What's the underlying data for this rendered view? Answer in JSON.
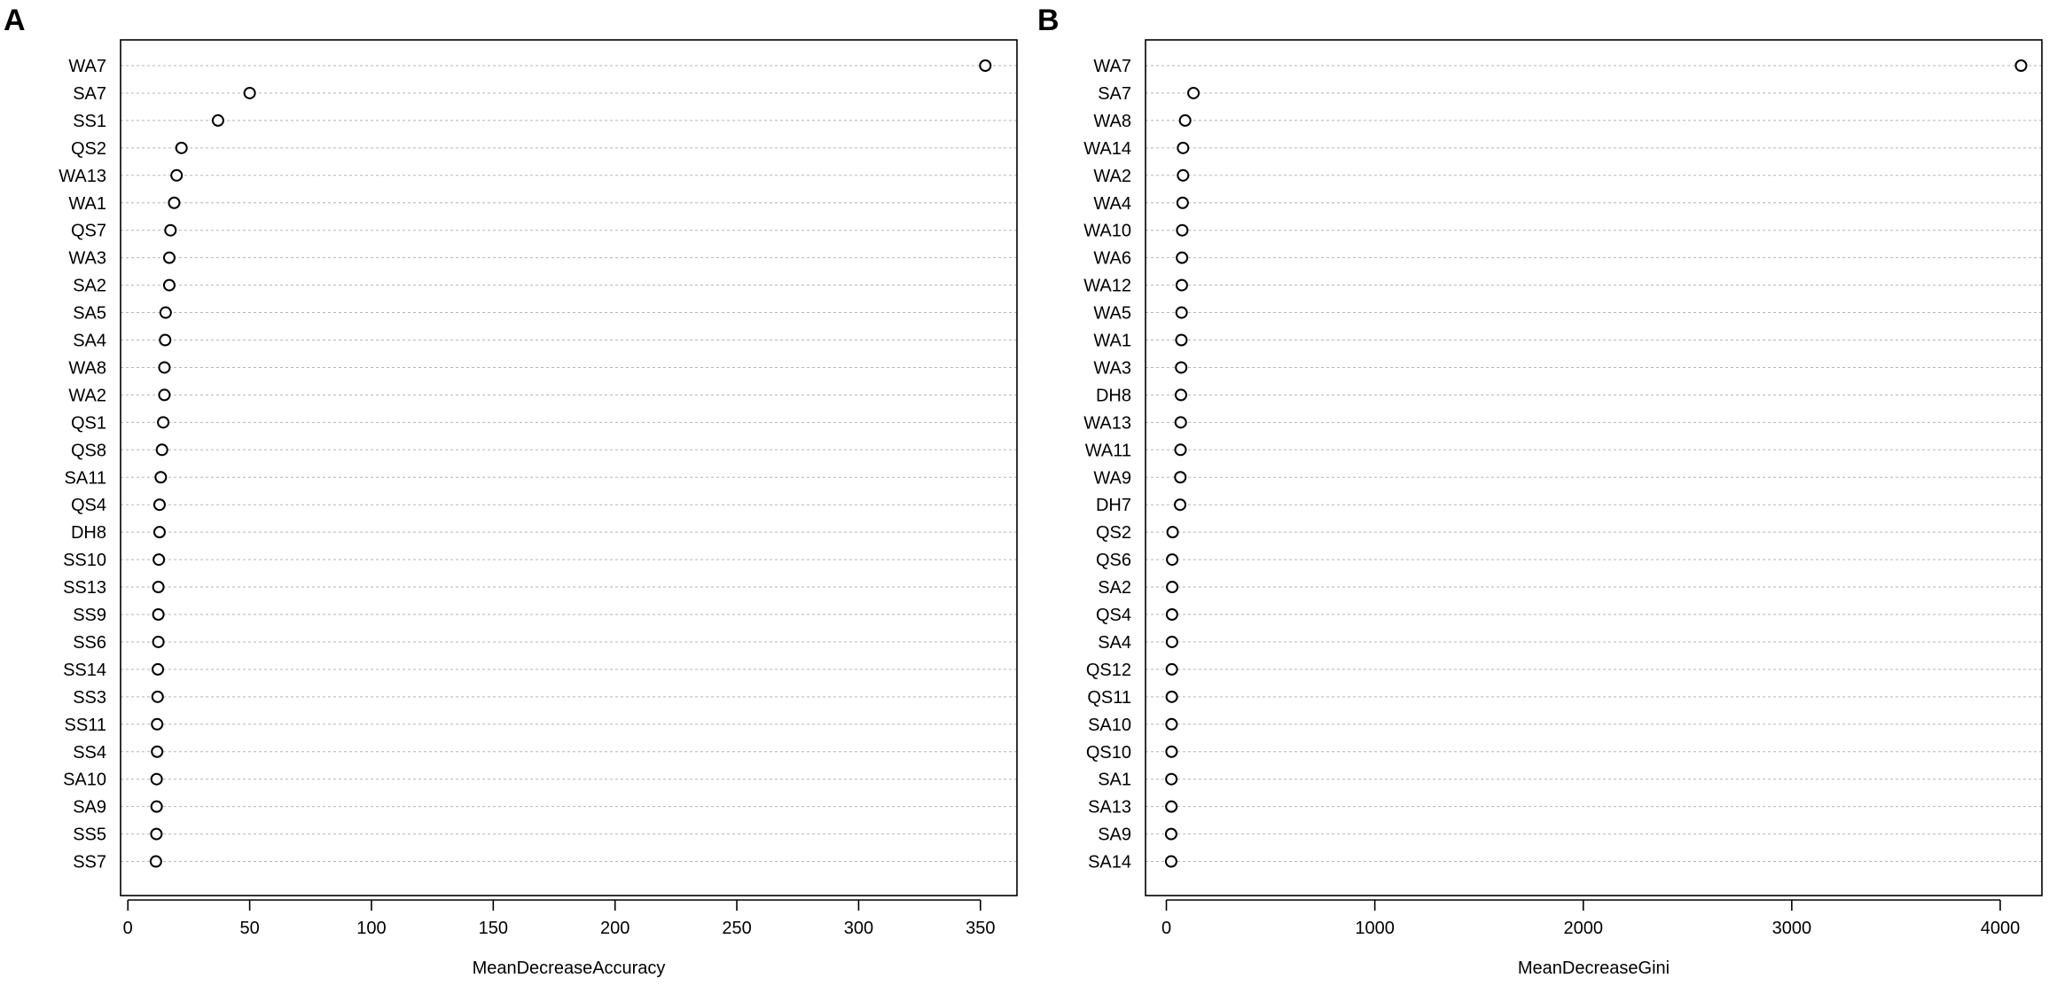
{
  "chart_data": [
    {
      "type": "scatter",
      "panel": "A",
      "title": "",
      "xlabel": "MeanDecreaseAccuracy",
      "ylabel": "",
      "xlim": [
        -3,
        365
      ],
      "xticks": [
        0,
        50,
        100,
        150,
        200,
        250,
        300,
        350
      ],
      "grid": "horizontal dotted",
      "categories": [
        "WA7",
        "SA7",
        "SS1",
        "QS2",
        "WA13",
        "WA1",
        "QS7",
        "WA3",
        "SA2",
        "SA5",
        "SA4",
        "WA8",
        "WA2",
        "QS1",
        "QS8",
        "SA11",
        "QS4",
        "DH8",
        "SS10",
        "SS13",
        "SS9",
        "SS6",
        "SS14",
        "SS3",
        "SS11",
        "SS4",
        "SA10",
        "SA9",
        "SS5",
        "SS7"
      ],
      "values": [
        352,
        50,
        37,
        22,
        20,
        19,
        17.5,
        17,
        17,
        15.5,
        15.3,
        15,
        15,
        14.5,
        14,
        13.5,
        13,
        13,
        12.7,
        12.5,
        12.5,
        12.5,
        12.3,
        12.2,
        12,
        12,
        11.8,
        11.8,
        11.7,
        11.5
      ]
    },
    {
      "type": "scatter",
      "panel": "B",
      "title": "",
      "xlabel": "MeanDecreaseGini",
      "ylabel": "",
      "xlim": [
        -100,
        4200
      ],
      "xticks": [
        0,
        1000,
        2000,
        3000,
        4000
      ],
      "grid": "horizontal dotted",
      "categories": [
        "WA7",
        "SA7",
        "WA8",
        "WA14",
        "WA2",
        "WA4",
        "WA10",
        "WA6",
        "WA12",
        "WA5",
        "WA1",
        "WA3",
        "DH8",
        "WA13",
        "WA11",
        "WA9",
        "DH7",
        "QS2",
        "QS6",
        "SA2",
        "QS4",
        "SA4",
        "QS12",
        "QS11",
        "SA10",
        "QS10",
        "SA1",
        "SA13",
        "SA9",
        "SA14"
      ],
      "values": [
        4100,
        130,
        90,
        80,
        80,
        78,
        76,
        75,
        74,
        73,
        72,
        71,
        70,
        69,
        68,
        67,
        66,
        30,
        28,
        28,
        27,
        27,
        26,
        26,
        25,
        25,
        24,
        24,
        23,
        23
      ]
    }
  ]
}
